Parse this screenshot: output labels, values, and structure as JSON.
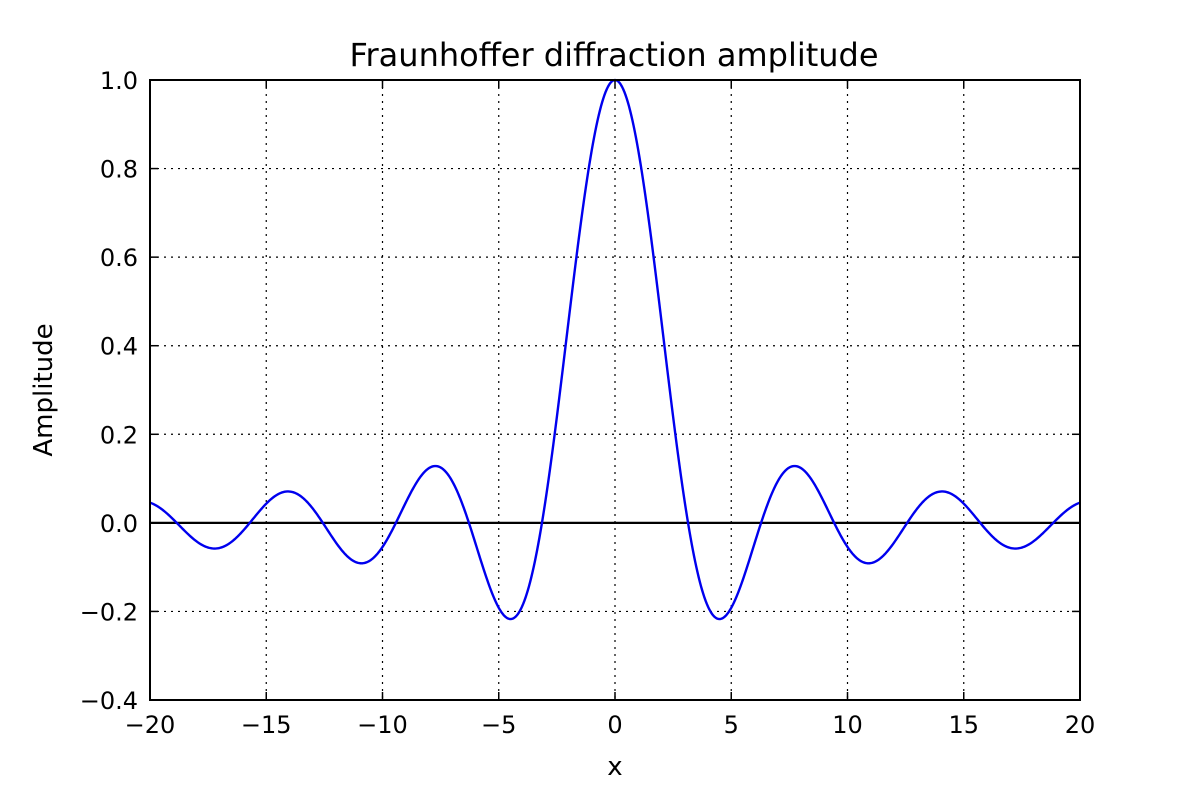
{
  "chart_data": {
    "type": "line",
    "title": "Fraunhoffer diffraction amplitude",
    "xlabel": "x",
    "ylabel": "Amplitude",
    "xlim": [
      -20,
      20
    ],
    "ylim": [
      -0.4,
      1.0
    ],
    "grid": true,
    "grid_style": "dotted",
    "xticks": [
      -20,
      -15,
      -10,
      -5,
      0,
      5,
      10,
      15,
      20
    ],
    "xtick_labels": [
      "−20",
      "−15",
      "−10",
      "−5",
      "0",
      "5",
      "10",
      "15",
      "20"
    ],
    "yticks": [
      -0.4,
      -0.2,
      0.0,
      0.2,
      0.4,
      0.6,
      0.8,
      1.0
    ],
    "ytick_labels": [
      "−0.4",
      "−0.2",
      "0.0",
      "0.2",
      "0.4",
      "0.6",
      "0.8",
      "1.0"
    ],
    "reference_line_y": 0,
    "series": [
      {
        "color": "#0000ee",
        "x": [
          -20,
          -19,
          -18,
          -17.2,
          -16,
          -15,
          -14.1,
          -13,
          -12,
          -11,
          -10,
          -9,
          -8,
          -7.7,
          -7,
          -6,
          -5,
          -4.5,
          -4,
          -3,
          -2,
          -1,
          0,
          1,
          2,
          3,
          4,
          4.5,
          5,
          6,
          7,
          7.7,
          8,
          9,
          10,
          11,
          12,
          13,
          14.1,
          15,
          16,
          17.2,
          18,
          19,
          20
        ],
        "y": [
          0.046,
          0.008,
          -0.042,
          -0.058,
          -0.018,
          0.043,
          0.071,
          0.032,
          -0.045,
          -0.091,
          -0.054,
          0.046,
          0.124,
          0.128,
          0.094,
          -0.047,
          -0.192,
          -0.217,
          -0.189,
          0.047,
          0.455,
          0.841,
          1.0,
          0.841,
          0.455,
          0.047,
          -0.189,
          -0.217,
          -0.192,
          -0.047,
          0.094,
          0.128,
          0.124,
          0.046,
          -0.054,
          -0.091,
          -0.045,
          0.032,
          0.071,
          0.043,
          -0.018,
          -0.058,
          -0.042,
          0.008,
          0.046
        ]
      }
    ]
  }
}
